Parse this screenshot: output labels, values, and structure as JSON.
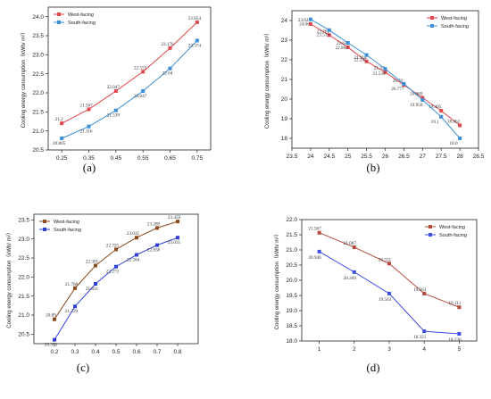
{
  "chart_data": [
    {
      "type": "line",
      "panel_label": "(a)",
      "ylabel": "Cooling energy consumption（kWh/ m²）",
      "x": [
        0.25,
        0.35,
        0.45,
        0.55,
        0.65,
        0.75
      ],
      "xlim": [
        0.2,
        0.8
      ],
      "ylim": [
        20.5,
        24.25
      ],
      "xticks": [
        "0.25",
        "0.35",
        "0.45",
        "0.55",
        "0.65",
        "0.75"
      ],
      "yticks": [
        "20.5",
        "21.0",
        "21.5",
        "22.0",
        "22.5",
        "23.0",
        "23.5",
        "24.0"
      ],
      "legend": "top-left",
      "series": [
        {
          "name": "West-facing",
          "color": "#e0474c",
          "marker": "square",
          "values": [
            21.2,
            21.567,
            22.047,
            22.555,
            23.176,
            23.854
          ],
          "labels": [
            "21.2",
            "21.567",
            "22.047",
            "22.555",
            "23.176",
            "23.854"
          ]
        },
        {
          "name": "South-facing",
          "color": "#3a8fd6",
          "marker": "square",
          "values": [
            20.805,
            21.116,
            21.539,
            22.047,
            22.64,
            23.374
          ],
          "labels": [
            "20.805",
            "21.116",
            "21.539",
            "22.047",
            "22.64",
            "23.374"
          ]
        }
      ]
    },
    {
      "type": "line",
      "panel_label": "(b)",
      "ylabel": "Cooling energy consumption（kWh/ m²）",
      "x": [
        24,
        24.5,
        25,
        25.5,
        26,
        26.5,
        27,
        27.5,
        28
      ],
      "xlim": [
        23.5,
        28.5
      ],
      "ylim": [
        17.5,
        24.5
      ],
      "xticks": [
        "23.5",
        "24",
        "24.5",
        "25",
        "25.5",
        "26",
        "26.5",
        "27",
        "27.5",
        "28",
        "28.5"
      ],
      "yticks": [
        "18",
        "19",
        "20",
        "21",
        "22",
        "23",
        "24"
      ],
      "legend": "top-right",
      "series": [
        {
          "name": "West-facing",
          "color": "#e0474c",
          "marker": "square",
          "values": [
            23.824,
            23.261,
            22.64,
            21.918,
            21.37,
            20.72,
            20.069,
            19.405,
            18.662
          ],
          "labels": [
            "23.824",
            "23.261",
            "22.64",
            "21.918",
            "21.37",
            "20.72",
            "20.069",
            "19.405",
            "18.662"
          ]
        },
        {
          "name": "South-facing",
          "color": "#3a8fd6",
          "marker": "square",
          "values": [
            24.06,
            23.513,
            22.864,
            22.245,
            21.539,
            20.777,
            19.958,
            19.1,
            18.0
          ],
          "labels": [
            "24.06",
            "23.513",
            "22.864",
            "22.245",
            "21.539",
            "20.777",
            "19.958",
            "19.1",
            "18.0"
          ]
        }
      ]
    },
    {
      "type": "line",
      "panel_label": "(c)",
      "ylabel": "Cooling energy consumption（kWh/ m²）",
      "x": [
        0.2,
        0.3,
        0.4,
        0.5,
        0.6,
        0.7,
        0.8
      ],
      "xlim": [
        0.1,
        0.9
      ],
      "ylim": [
        20.25,
        23.65
      ],
      "xticks": [
        "0.2",
        "0.3",
        "0.4",
        "0.5",
        "0.6",
        "0.7",
        "0.8"
      ],
      "yticks": [
        "20.5",
        "21.0",
        "21.5",
        "22.0",
        "22.5",
        "23.0",
        "23.5"
      ],
      "legend": "top-left",
      "series": [
        {
          "name": "West-facing",
          "color": "#8b4a1c",
          "marker": "square",
          "values": [
            20.89,
            21.708,
            22.301,
            22.725,
            23.035,
            23.289,
            23.459
          ],
          "labels": [
            "20.89",
            "21.708",
            "22.301",
            "22.725",
            "23.035",
            "23.289",
            "23.459"
          ]
        },
        {
          "name": "South-facing",
          "color": "#2f3fd6",
          "marker": "square",
          "values": [
            20.353,
            21.229,
            21.821,
            22.273,
            22.584,
            22.838,
            23.035
          ],
          "labels": [
            "20.353",
            "21.229",
            "21.821",
            "22.273",
            "22.584",
            "22.838",
            "23.035"
          ]
        }
      ]
    },
    {
      "type": "line",
      "panel_label": "(d)",
      "ylabel": "Cooling energy consumption（kWh/ m²）",
      "x": [
        1,
        2,
        3,
        4,
        5
      ],
      "xlim": [
        0.5,
        5.5
      ],
      "ylim": [
        18.0,
        22.0
      ],
      "xticks": [
        "1",
        "2",
        "3",
        "4",
        "5"
      ],
      "yticks": [
        "18.0",
        "18.5",
        "19.0",
        "19.5",
        "20.0",
        "20.5",
        "21.0",
        "21.5",
        "22.0"
      ],
      "legend": "top-right",
      "series": [
        {
          "name": "West-facing",
          "color": "#b5493b",
          "marker": "square",
          "values": [
            21.567,
            21.087,
            20.551,
            19.563,
            19.111
          ],
          "labels": [
            "21.567",
            "21.087",
            "20.551",
            "19.563",
            "19.111"
          ]
        },
        {
          "name": "South-facing",
          "color": "#3f4fe0",
          "marker": "square",
          "values": [
            20.946,
            20.269,
            19.563,
            18.321,
            18.236
          ],
          "labels": [
            "20.946",
            "20.269",
            "19.563",
            "18.321",
            "18.236"
          ]
        }
      ]
    }
  ]
}
